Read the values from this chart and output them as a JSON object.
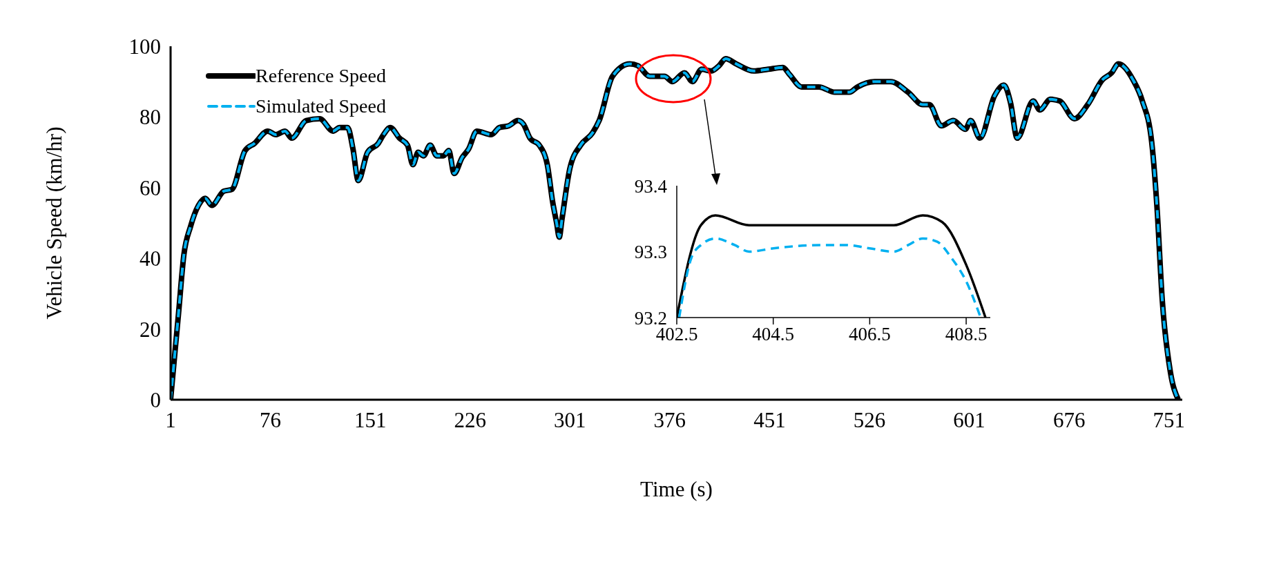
{
  "chart_data": [
    {
      "type": "line",
      "xlabel": "Time (s)",
      "ylabel": "Vehicle Speed (km/hr)",
      "x": [
        1,
        7,
        11,
        16,
        22,
        27,
        32,
        41,
        47,
        57,
        64,
        74,
        80,
        87,
        92,
        103,
        113,
        123,
        128,
        134,
        138,
        142,
        149,
        157,
        161,
        166,
        173,
        179,
        183,
        187,
        191,
        196,
        201,
        206,
        210,
        214,
        220,
        225,
        231,
        242,
        248,
        255,
        262,
        266,
        271,
        278,
        284,
        288,
        291,
        293,
        295,
        301,
        309,
        318,
        323,
        333,
        346,
        352,
        361,
        372,
        378,
        387,
        393,
        400,
        407,
        413,
        418,
        426,
        439,
        450,
        461,
        466,
        475,
        488,
        500,
        511,
        517,
        530,
        542,
        555,
        566,
        571,
        580,
        589,
        598,
        602,
        609,
        620,
        627,
        632,
        637,
        649,
        654,
        662,
        669,
        680,
        690,
        701,
        708,
        713,
        724,
        731,
        738,
        742,
        746,
        752,
        758
      ],
      "series": [
        {
          "name": "Reference Speed",
          "color": "#000000",
          "line_style": "solid",
          "values": [
            0,
            24.5,
            41,
            49,
            55,
            57,
            55,
            59,
            59.5,
            70.5,
            72.5,
            76,
            75,
            76,
            74,
            79,
            79.5,
            76,
            77,
            77,
            71,
            62,
            70,
            72.5,
            75,
            77,
            74,
            72,
            66.5,
            70,
            69,
            72,
            69,
            69,
            70.5,
            64,
            68.5,
            71,
            76,
            75,
            77,
            77.5,
            79,
            78,
            74,
            72,
            66.5,
            56,
            50,
            46,
            51,
            65.5,
            72,
            75.5,
            79,
            91.5,
            95,
            94.5,
            91.5,
            91.5,
            90,
            92.5,
            90,
            93.5,
            93,
            94.5,
            96.5,
            95,
            93,
            93.5,
            94,
            92,
            88.5,
            88.5,
            87,
            87,
            88.5,
            90,
            90,
            87,
            83.5,
            83.5,
            77.5,
            79,
            76.5,
            79,
            74,
            86,
            89,
            84,
            74,
            84.5,
            82,
            85,
            84.5,
            79.5,
            83.5,
            90.5,
            92.5,
            95,
            90.5,
            84.5,
            73,
            54.5,
            28,
            8,
            0
          ]
        },
        {
          "name": "Simulated Speed",
          "color": "#00b0f0",
          "line_style": "dashed",
          "values": [
            0,
            24.5,
            41,
            49,
            55,
            57,
            55,
            59,
            59.5,
            70.5,
            72.5,
            76,
            75,
            76,
            74,
            79,
            79.5,
            76,
            77,
            77,
            71,
            62,
            70,
            72.5,
            75,
            77,
            74,
            72,
            66.5,
            70,
            69,
            72,
            69,
            69,
            70.5,
            64,
            68.5,
            71,
            76,
            75,
            77,
            77.5,
            79,
            78,
            74,
            72,
            66.5,
            56,
            50,
            46,
            51,
            65.5,
            72,
            75.5,
            79,
            91.5,
            95,
            94.5,
            91.5,
            91.5,
            90,
            92.5,
            90,
            93.5,
            93,
            94.5,
            96.5,
            95,
            93,
            93.5,
            94,
            92,
            88.5,
            88.5,
            87,
            87,
            88.5,
            90,
            90,
            87,
            83.5,
            83.5,
            77.5,
            79,
            76.5,
            79,
            74,
            86,
            89,
            84,
            74,
            84.5,
            82,
            85,
            84.5,
            79.5,
            83.5,
            90.5,
            92.5,
            95,
            90.5,
            84.5,
            73,
            54.5,
            28,
            8,
            0
          ]
        }
      ],
      "xlim": [
        1,
        761
      ],
      "xticks": [
        1,
        76,
        151,
        226,
        301,
        376,
        451,
        526,
        601,
        676,
        751
      ],
      "ylim": [
        0,
        100
      ],
      "yticks": [
        0,
        20,
        40,
        60,
        80,
        100
      ],
      "grid": false,
      "legend": "top left",
      "marker": "none"
    },
    {
      "type": "line",
      "series": [
        {
          "color": "#000000",
          "line_style": "solid",
          "x": [
            402.5,
            403,
            403.3,
            404,
            405,
            406,
            407,
            407.6,
            408,
            408.5,
            408.9
          ],
          "values": [
            93.2,
            93.34,
            93.355,
            93.34,
            93.34,
            93.34,
            93.34,
            93.355,
            93.345,
            93.28,
            93.2
          ]
        },
        {
          "color": "#00b0f0",
          "line_style": "dashed",
          "x": [
            402.55,
            402.8,
            403,
            403.3,
            403.7,
            404,
            404.5,
            405.5,
            406,
            406.5,
            407,
            407.3,
            407.6,
            407.9,
            408.2,
            408.5,
            408.8
          ],
          "values": [
            93.2,
            93.29,
            93.31,
            93.32,
            93.31,
            93.3,
            93.305,
            93.31,
            93.31,
            93.305,
            93.3,
            93.31,
            93.32,
            93.315,
            93.29,
            93.255,
            93.2
          ]
        }
      ],
      "xlim": [
        402.5,
        409
      ],
      "xticks": [
        402.5,
        404.5,
        406.5,
        408.5
      ],
      "ylim": [
        93.2,
        93.4
      ],
      "yticks": [
        93.2,
        93.3,
        93.4
      ],
      "grid": false,
      "legend": false,
      "marker": "none"
    }
  ]
}
